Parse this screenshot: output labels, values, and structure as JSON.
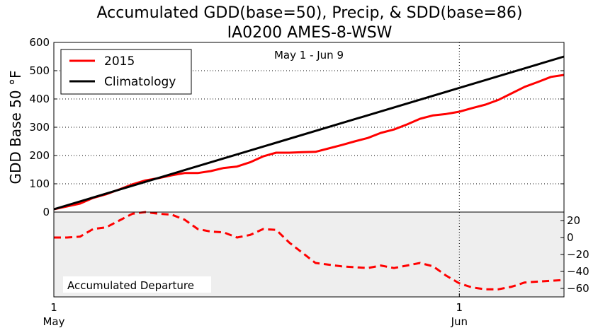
{
  "chart_data": [
    {
      "type": "line",
      "title": "Accumulated GDD(base=50), Precip, & SDD(base=86)",
      "subtitle": "IA0200 AMES-8-WSW",
      "annotation": "May 1 - Jun 9",
      "ylabel": "GDD Base 50 °F",
      "ylim": [
        0,
        600
      ],
      "yticks": [
        0,
        100,
        200,
        300,
        400,
        500,
        600
      ],
      "xlim_days": [
        0,
        39
      ],
      "grid": true,
      "legend_position": "top-left",
      "series": [
        {
          "name": "2015",
          "color": "#ff0000",
          "x": [
            0,
            1,
            2,
            3,
            4,
            5,
            6,
            7,
            8,
            9,
            10,
            11,
            12,
            13,
            14,
            15,
            16,
            17,
            18,
            19,
            20,
            21,
            22,
            23,
            24,
            25,
            26,
            27,
            28,
            29,
            30,
            31,
            32,
            33,
            34,
            35,
            36,
            37,
            38,
            39
          ],
          "values": [
            10,
            20,
            30,
            50,
            63,
            80,
            98,
            112,
            120,
            130,
            138,
            138,
            145,
            156,
            161,
            176,
            197,
            210,
            210,
            212,
            213,
            225,
            237,
            250,
            262,
            280,
            292,
            310,
            330,
            342,
            347,
            355,
            368,
            380,
            397,
            420,
            443,
            460,
            478,
            485
          ]
        },
        {
          "name": "Climatology",
          "color": "#000000",
          "x": [
            0,
            39
          ],
          "values": [
            10,
            550
          ]
        }
      ]
    },
    {
      "type": "line",
      "label": "Accumulated Departure",
      "ylim": [
        -70,
        30
      ],
      "yticks": [
        20,
        0,
        -20,
        -40,
        -60
      ],
      "xlim_days": [
        0,
        39
      ],
      "xticks": [
        {
          "day": 0,
          "label": "1",
          "sublabel": "May"
        },
        {
          "day": 31,
          "label": "1",
          "sublabel": "Jun"
        }
      ],
      "background": "#eeeeee",
      "series": [
        {
          "color": "#ff0000",
          "style": "dashed",
          "x": [
            0,
            1,
            2,
            3,
            4,
            5,
            6,
            7,
            8,
            9,
            10,
            11,
            12,
            13,
            14,
            15,
            16,
            17,
            18,
            19,
            20,
            21,
            22,
            23,
            24,
            25,
            26,
            27,
            28,
            29,
            30,
            31,
            32,
            33,
            34,
            35,
            36,
            37,
            38,
            39
          ],
          "values": [
            0,
            0,
            1,
            10,
            12,
            20,
            28,
            30,
            28,
            27,
            21,
            10,
            7,
            6,
            0,
            3,
            10,
            9,
            -6,
            -18,
            -30,
            -32,
            -34,
            -35,
            -36,
            -33,
            -36,
            -33,
            -30,
            -34,
            -45,
            -54,
            -59,
            -61,
            -61,
            -58,
            -53,
            -52,
            -51,
            -50
          ]
        }
      ]
    }
  ]
}
